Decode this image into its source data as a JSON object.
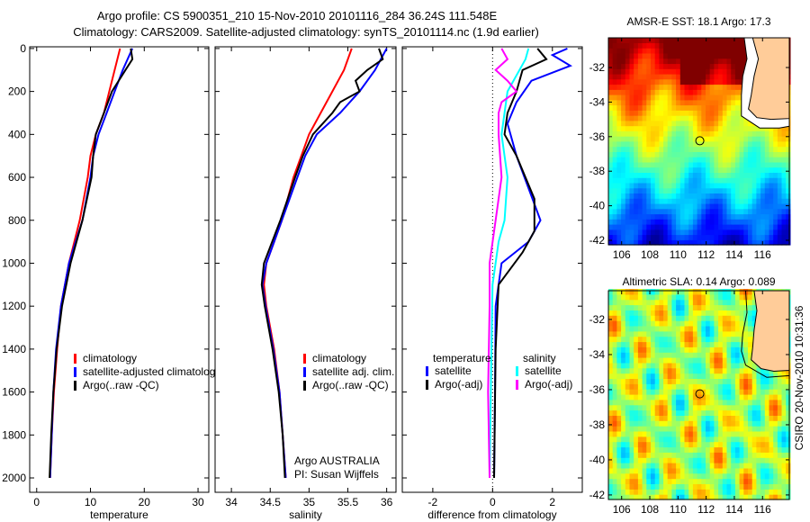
{
  "title": {
    "line1": "Argo profile: CS 5900351_210 15-Nov-2010 20101116_284 36.24S 111.548E",
    "line2": "Climatology: CARS2009. Satellite-adjusted climatology: synTS_20101114.nc (1.9d earlier)"
  },
  "side_stamp": "CSIRO 20-Nov-2010 10:31:36",
  "colors": {
    "climatology": "#ff0000",
    "satellite": "#0000ff",
    "argo": "#000000",
    "sal_satellite": "#00ffff",
    "sal_argo": "#ff00ff",
    "land": "#ffcc99"
  },
  "chart_data": [
    {
      "type": "line",
      "name": "temperature-profile",
      "xlabel": "temperature",
      "xlim": [
        -1.3,
        32
      ],
      "ylim": [
        2067,
        -8
      ],
      "xticks": [
        0,
        10,
        20,
        30
      ],
      "yticks": [
        0,
        200,
        400,
        600,
        800,
        1000,
        1200,
        1400,
        1600,
        1800,
        2000
      ],
      "legend": [
        "climatology",
        "satellite-adjusted climatology",
        "Argo(..raw -QC)"
      ],
      "series": [
        {
          "name": "climatology",
          "color": "#ff0000",
          "depth": [
            0,
            100,
            200,
            300,
            400,
            500,
            600,
            800,
            1000,
            1200,
            1400,
            1600,
            1800,
            2000
          ],
          "values": [
            15.5,
            14.5,
            13.5,
            12.5,
            11,
            10,
            9.5,
            8,
            6,
            4.5,
            3.8,
            3.2,
            2.8,
            2.5
          ]
        },
        {
          "name": "satellite-adjusted climatology",
          "color": "#0000ff",
          "depth": [
            0,
            100,
            200,
            300,
            400,
            500,
            600,
            800,
            1000,
            1200,
            1400,
            1600,
            1800,
            2000
          ],
          "values": [
            17.8,
            16,
            14.5,
            13,
            11.5,
            10.5,
            10,
            8.5,
            6,
            4.5,
            3.6,
            3.1,
            2.8,
            2.5
          ]
        },
        {
          "name": "Argo(..raw -QC)",
          "color": "#000000",
          "depth": [
            0,
            50,
            100,
            200,
            300,
            400,
            500,
            600,
            800,
            1000,
            1200,
            1400,
            1600,
            1800,
            2000
          ],
          "values": [
            17.5,
            17.8,
            16.5,
            14,
            12.5,
            11,
            10.5,
            10.2,
            8.5,
            6.3,
            4.7,
            3.7,
            3.1,
            2.7,
            2.4
          ]
        }
      ]
    },
    {
      "type": "line",
      "name": "salinity-profile",
      "xlabel": "salinity",
      "xlim": [
        33.79,
        36.12
      ],
      "ylim": [
        2067,
        -8
      ],
      "xticks": [
        34,
        34.5,
        35,
        35.5,
        36
      ],
      "legend": [
        "climatology",
        "satellite adj. clim.",
        "Argo(..raw -QC)"
      ],
      "annotation": [
        "Argo AUSTRALIA",
        "PI: Susan Wijffels"
      ],
      "series": [
        {
          "name": "climatology",
          "color": "#ff0000",
          "depth": [
            0,
            100,
            200,
            300,
            400,
            500,
            600,
            800,
            900,
            1000,
            1100,
            1200,
            1400,
            1600,
            1800,
            2000
          ],
          "values": [
            35.55,
            35.45,
            35.3,
            35.15,
            35.0,
            34.9,
            34.8,
            34.65,
            34.55,
            34.45,
            34.42,
            34.45,
            34.55,
            34.62,
            34.66,
            34.7
          ]
        },
        {
          "name": "satellite adj. clim.",
          "color": "#0000ff",
          "depth": [
            0,
            100,
            200,
            300,
            400,
            500,
            600,
            800,
            900,
            1000,
            1100,
            1200,
            1400,
            1600,
            1800,
            2000
          ],
          "values": [
            36.0,
            35.85,
            35.65,
            35.4,
            35.1,
            34.95,
            34.85,
            34.65,
            34.55,
            34.45,
            34.4,
            34.44,
            34.54,
            34.62,
            34.66,
            34.7
          ]
        },
        {
          "name": "Argo(..raw -QC)",
          "color": "#000000",
          "depth": [
            0,
            50,
            100,
            150,
            200,
            250,
            300,
            400,
            500,
            600,
            800,
            1000,
            1100,
            1200,
            1400,
            1600,
            1800,
            2000
          ],
          "values": [
            35.9,
            35.95,
            35.75,
            35.6,
            35.65,
            35.4,
            35.3,
            35.05,
            34.92,
            34.82,
            34.63,
            34.42,
            34.39,
            34.43,
            34.53,
            34.61,
            34.66,
            34.69
          ]
        }
      ]
    },
    {
      "type": "line",
      "name": "difference-profile",
      "xlabel": "difference from climatology",
      "xlim": [
        -3.02,
        3.0
      ],
      "ylim": [
        2067,
        -8
      ],
      "xticks": [
        -2,
        0,
        2
      ],
      "legend_headers": [
        "temperature",
        "salinity"
      ],
      "legend": [
        "satellite",
        "Argo(-adj)",
        "satellite",
        "Argo(-adj)"
      ],
      "series": [
        {
          "name": "temperature satellite",
          "color": "#0000ff",
          "depth": [
            0,
            30,
            80,
            150,
            250,
            350,
            500,
            650,
            800,
            900,
            1000,
            1200,
            1600,
            2000
          ],
          "values": [
            2.5,
            2.0,
            2.6,
            1.3,
            0.8,
            0.5,
            0.8,
            1.2,
            1.6,
            1.2,
            0.3,
            0.1,
            0.08,
            0.05
          ]
        },
        {
          "name": "temperature Argo(-adj)",
          "color": "#000000",
          "depth": [
            0,
            50,
            100,
            200,
            300,
            400,
            500,
            700,
            850,
            950,
            1100,
            1400,
            2000
          ],
          "values": [
            1.5,
            1.8,
            1.0,
            0.8,
            0.5,
            0.4,
            0.8,
            1.4,
            1.4,
            1.0,
            0.2,
            0.1,
            0.05
          ]
        },
        {
          "name": "salinity satellite",
          "color": "#00ffff",
          "depth": [
            0,
            50,
            100,
            200,
            300,
            400,
            500,
            600,
            800,
            900,
            1100,
            1500,
            2000
          ],
          "values": [
            1.2,
            1.1,
            0.9,
            0.5,
            0.4,
            0.3,
            0.4,
            0.5,
            0.4,
            0.2,
            0.0,
            -0.05,
            -0.1
          ]
        },
        {
          "name": "salinity Argo(-adj)",
          "color": "#ff00ff",
          "depth": [
            0,
            50,
            100,
            150,
            200,
            250,
            300,
            400,
            600,
            800,
            1000,
            1200,
            1600,
            2000
          ],
          "values": [
            0.3,
            0.5,
            0.1,
            0.5,
            0.8,
            0.3,
            0.2,
            0.2,
            0.3,
            0.1,
            -0.1,
            -0.1,
            -0.15,
            -0.1
          ]
        }
      ]
    },
    {
      "type": "heatmap",
      "name": "sst-map",
      "title": "AMSR-E SST: 18.1 Argo: 17.3",
      "xlim": [
        105.06,
        117.9
      ],
      "ylim": [
        -42.26,
        -30.28
      ],
      "xticks": [
        106,
        108,
        110,
        112,
        114,
        116
      ],
      "yticks": [
        -32,
        -34,
        -36,
        -38,
        -40,
        -42
      ],
      "argo_position": [
        111.548,
        -36.24
      ]
    },
    {
      "type": "heatmap",
      "name": "sla-map",
      "title": "Altimetric SLA: 0.14 Argo: 0.089",
      "xlim": [
        105.06,
        117.9
      ],
      "ylim": [
        -42.26,
        -30.36
      ],
      "xticks": [
        106,
        108,
        110,
        112,
        114,
        116
      ],
      "yticks": [
        -32,
        -34,
        -36,
        -38,
        -40,
        -42
      ],
      "argo_position": [
        111.548,
        -36.24
      ]
    }
  ]
}
